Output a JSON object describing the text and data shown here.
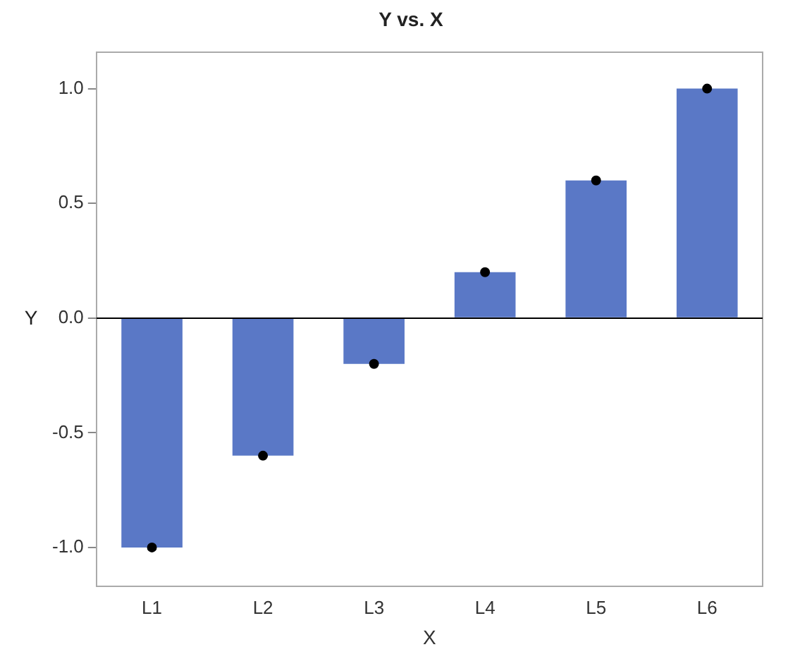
{
  "chart_data": {
    "type": "bar",
    "title": "Y vs. X",
    "xlabel": "X",
    "ylabel": "Y",
    "categories": [
      "L1",
      "L2",
      "L3",
      "L4",
      "L5",
      "L6"
    ],
    "series": [
      {
        "color": "#5a78c6",
        "values": [
          -1.0,
          -0.6,
          -0.2,
          0.2,
          0.6,
          1.0
        ]
      },
      {
        "type": "scatter",
        "color": "#000000",
        "x": [
          "L1",
          "L2",
          "L3",
          "L4",
          "L5",
          "L6"
        ],
        "values": [
          -1.0,
          -0.6,
          -0.2,
          0.2,
          0.6,
          1.0
        ]
      }
    ],
    "ylim": [
      -1.17,
      1.16
    ],
    "yticks": [
      {
        "value": -1,
        "label": "-1.0"
      },
      {
        "value": -0.5,
        "label": "-0.5"
      },
      {
        "value": 0,
        "label": "0.0"
      },
      {
        "value": 0.5,
        "label": "0.5"
      },
      {
        "value": 1,
        "label": "1.0"
      }
    ],
    "ref_lines": [
      {
        "axis": "y",
        "value": 0,
        "color": "#000000"
      }
    ],
    "grid": false,
    "legend": false,
    "marker": "circle"
  }
}
